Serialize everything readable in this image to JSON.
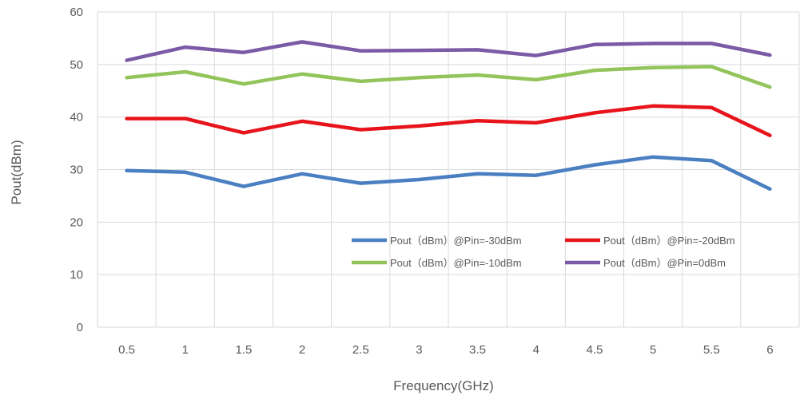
{
  "chart_data": {
    "type": "line",
    "xlabel": "Frequency(GHz)",
    "ylabel": "Pout(dBm)",
    "ylim": [
      0,
      60
    ],
    "yticks": [
      "0",
      "10",
      "20",
      "30",
      "40",
      "50",
      "60"
    ],
    "categories": [
      "0.5",
      "1",
      "1.5",
      "2",
      "2.5",
      "3",
      "3.5",
      "4",
      "4.5",
      "5",
      "5.5",
      "6"
    ],
    "grid": true,
    "legend_position": "bottom-right",
    "series": [
      {
        "name": "Pout（dBm）@Pin=-30dBm",
        "color": "#4a7fc1",
        "values": [
          29.8,
          29.5,
          26.8,
          29.2,
          27.4,
          28.1,
          29.2,
          28.9,
          30.9,
          32.4,
          31.7,
          26.3
        ]
      },
      {
        "name": "Pout（dBm）@Pin=-20dBm",
        "color": "#e8141c",
        "values": [
          39.7,
          39.7,
          37.0,
          39.2,
          37.6,
          38.3,
          39.3,
          38.9,
          40.8,
          42.1,
          41.8,
          36.5
        ]
      },
      {
        "name": "Pout（dBm）@Pin=-10dBm",
        "color": "#92c45a",
        "values": [
          47.5,
          48.6,
          46.3,
          48.2,
          46.8,
          47.5,
          48.0,
          47.1,
          48.9,
          49.4,
          49.6,
          45.7
        ]
      },
      {
        "name": "Pout（dBm）@Pin=0dBm",
        "color": "#7b5aa6",
        "values": [
          50.8,
          53.3,
          52.3,
          54.3,
          52.6,
          52.7,
          52.8,
          51.7,
          53.8,
          54.0,
          54.0,
          51.8
        ]
      }
    ]
  }
}
